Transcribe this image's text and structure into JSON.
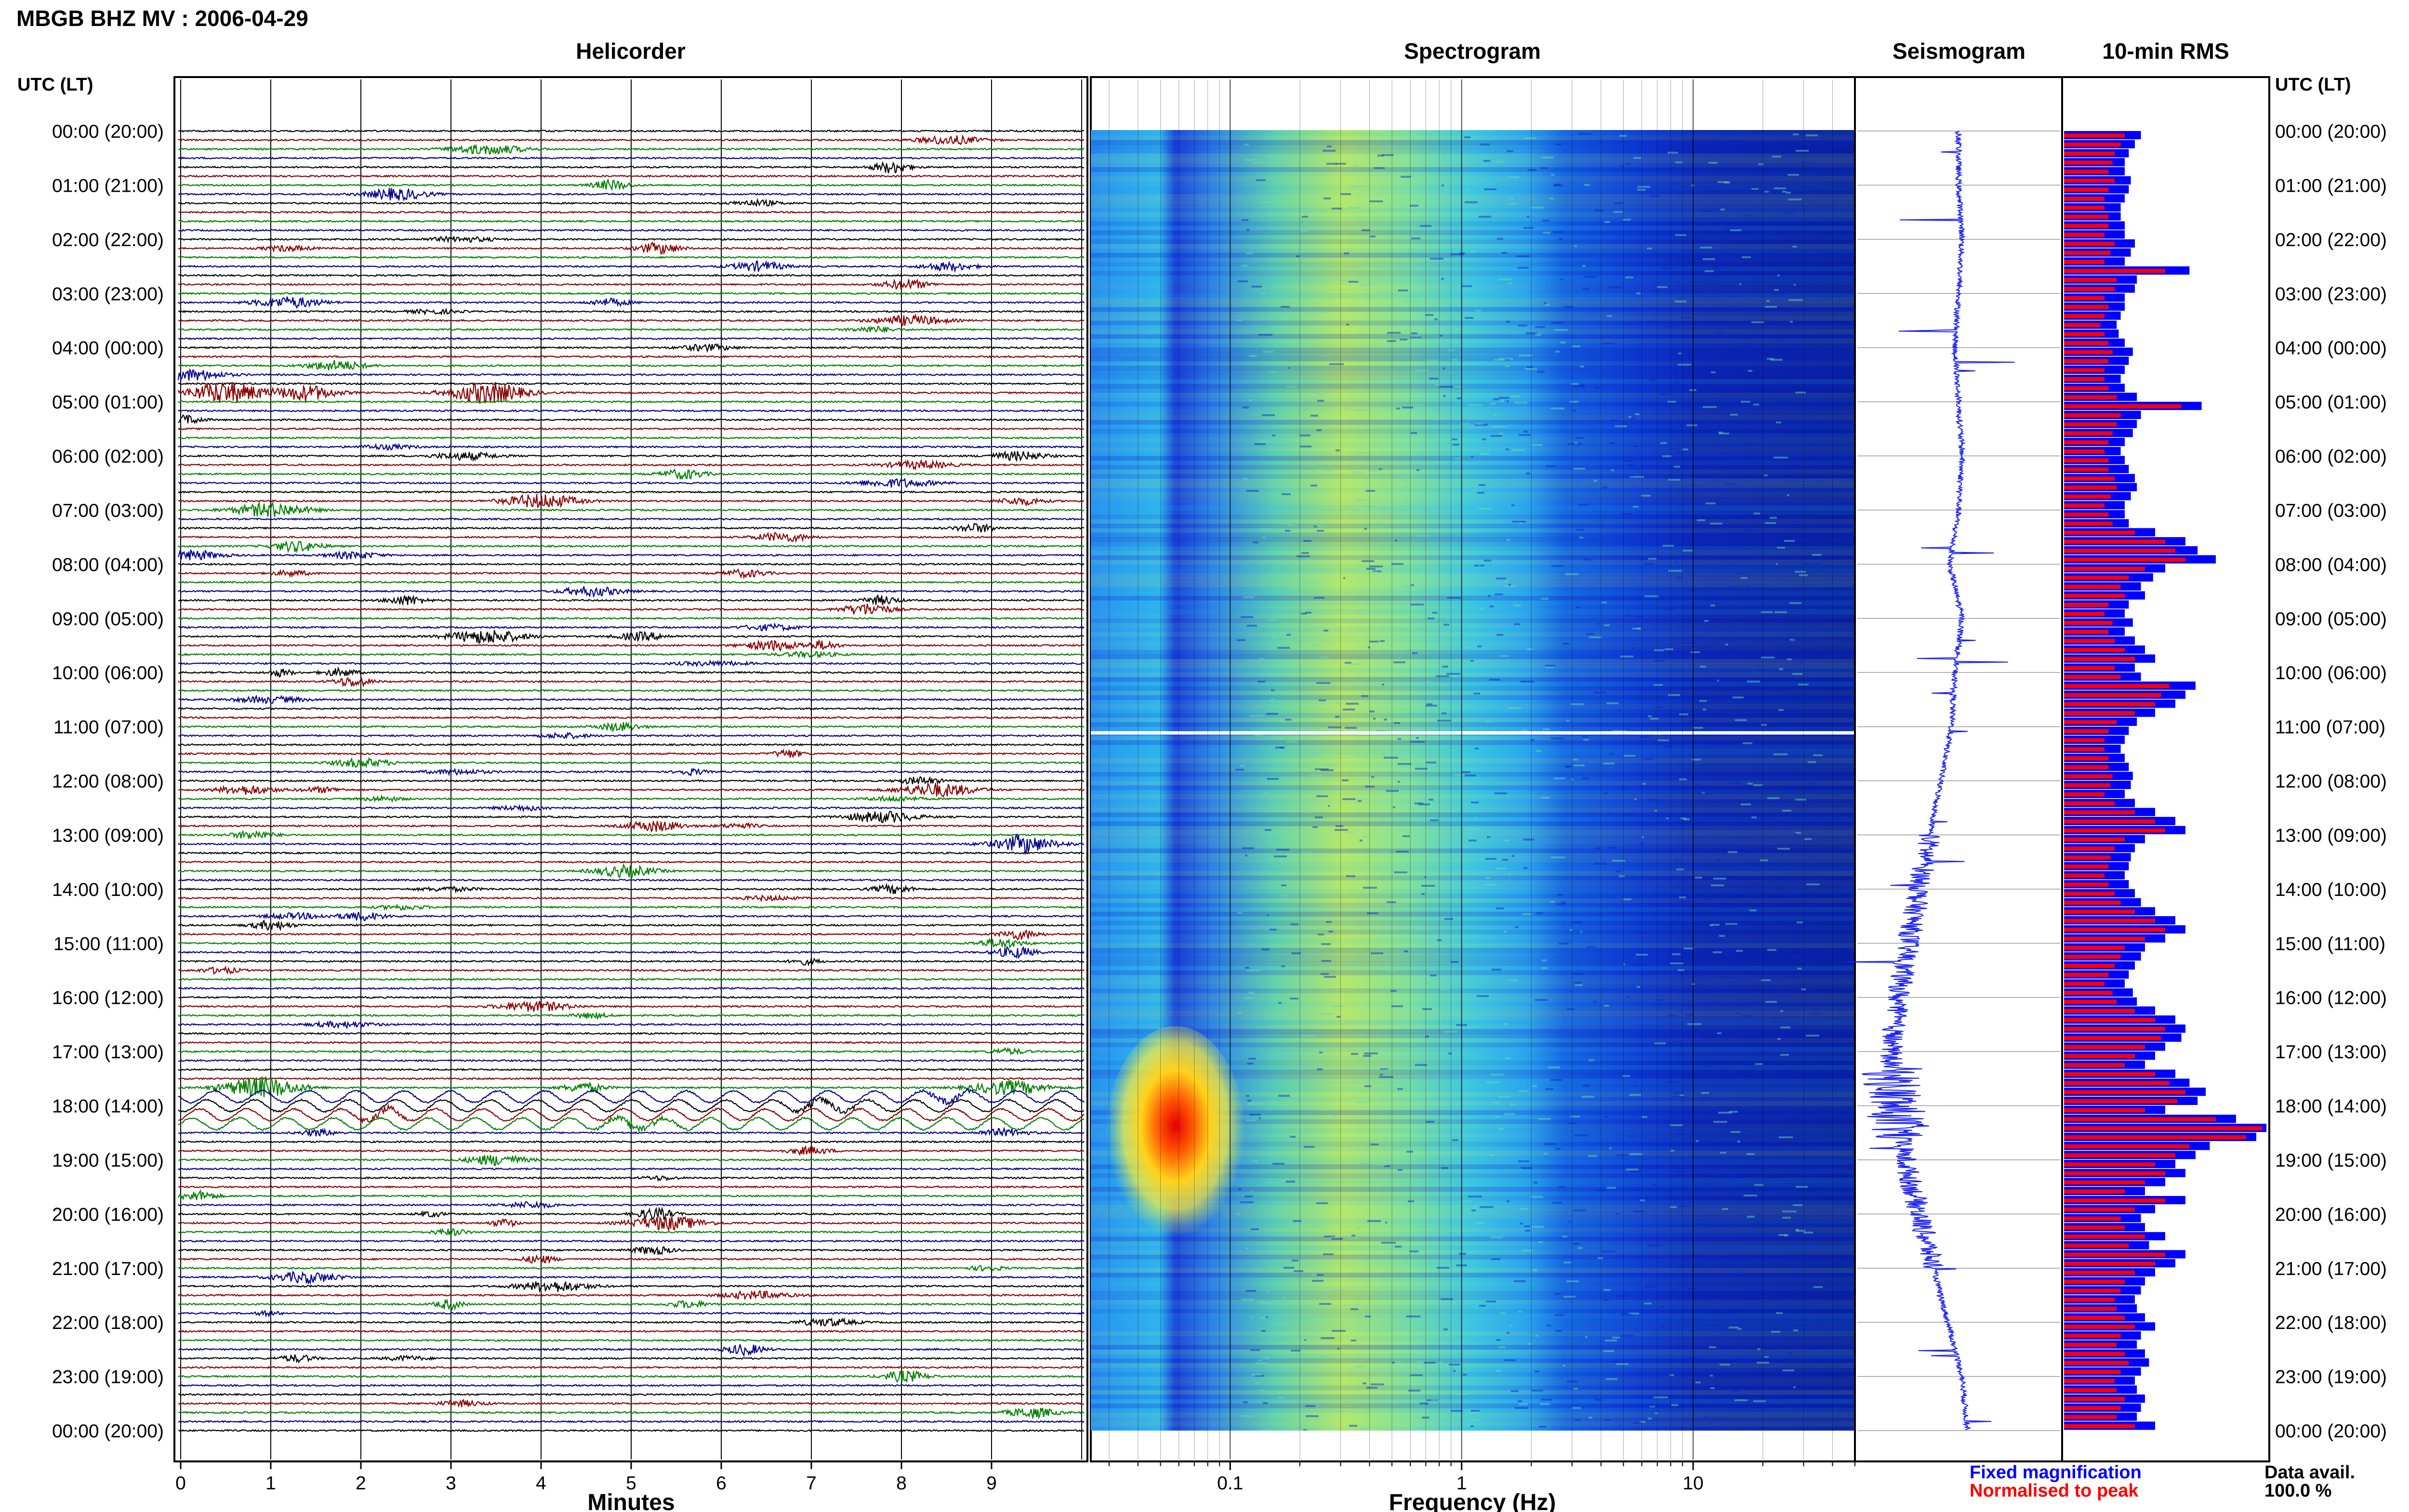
{
  "title": "MBGB BHZ MV : 2006-04-29",
  "panels": {
    "helicorder": "Helicorder",
    "spectrogram": "Spectrogram",
    "seismogram": "Seismogram",
    "rms": "10-min RMS"
  },
  "time_axis_label": "UTC (LT)",
  "time_ticks": [
    "00:00 (20:00)",
    "01:00 (21:00)",
    "02:00 (22:00)",
    "03:00 (23:00)",
    "04:00 (00:00)",
    "05:00 (01:00)",
    "06:00 (02:00)",
    "07:00 (03:00)",
    "08:00 (04:00)",
    "09:00 (05:00)",
    "10:00 (06:00)",
    "11:00 (07:00)",
    "12:00 (08:00)",
    "13:00 (09:00)",
    "14:00 (10:00)",
    "15:00 (11:00)",
    "16:00 (12:00)",
    "17:00 (13:00)",
    "18:00 (14:00)",
    "19:00 (15:00)",
    "20:00 (16:00)",
    "21:00 (17:00)",
    "22:00 (18:00)",
    "23:00 (19:00)",
    "00:00 (20:00)"
  ],
  "legend": {
    "fixed": "Fixed magnification",
    "normalised": "Normalised to peak",
    "fixed_color": "#0000ff",
    "normalised_color": "#ff0000"
  },
  "data_avail": {
    "label": "Data avail.",
    "value": "100.0 %"
  },
  "colors": {
    "black": "#000000",
    "red": "#8b0000",
    "green": "#008000",
    "blue": "#00008b"
  },
  "chart_data": [
    {
      "type": "line",
      "panel": "Helicorder",
      "xlabel": "Minutes",
      "x_ticks": [
        "0",
        "1",
        "2",
        "3",
        "4",
        "5",
        "6",
        "7",
        "8",
        "9"
      ],
      "xlim": [
        0,
        10
      ],
      "rows": 144,
      "row_minutes": 10,
      "line_colors_cycle": [
        "black",
        "red",
        "green",
        "blue"
      ],
      "notable_events": [
        {
          "time": "04:50",
          "minute": 0.5,
          "amp": "large"
        },
        {
          "time": "04:50",
          "minute": 3.4,
          "amp": "large"
        },
        {
          "time": "06:50",
          "minute": 4.0,
          "amp": "medium"
        },
        {
          "time": "07:00",
          "minute": 1.0,
          "amp": "medium"
        },
        {
          "time": "09:20",
          "minute": 3.4,
          "amp": "medium"
        },
        {
          "time": "12:10",
          "minute": 8.4,
          "amp": "medium"
        },
        {
          "time": "17:40",
          "minute": 0.9,
          "amp": "large"
        },
        {
          "time": "17:40",
          "minute": 9.2,
          "amp": "medium"
        },
        {
          "time": "20:10",
          "minute": 5.4,
          "amp": "medium"
        },
        {
          "time": "18:00",
          "minute": 0,
          "amp": "long-period oscillation"
        }
      ]
    },
    {
      "type": "heatmap",
      "panel": "Spectrogram",
      "xlabel": "Frequency (Hz)",
      "x_scale": "log",
      "xlim": [
        0.025,
        50
      ],
      "x_ticks": [
        "0.1",
        "1",
        "10"
      ],
      "features": [
        {
          "time": "11:00",
          "note": "data gap (white line)"
        },
        {
          "time": "17:50-20:10",
          "freq_hz": [
            0.04,
            0.12
          ],
          "note": "high energy (red/yellow)"
        }
      ]
    },
    {
      "type": "line",
      "panel": "Seismogram",
      "note": "24-hour trace, drifts left toward 17:00-18:00 then returns",
      "relative_offset": [
        0.5,
        0.5,
        0.52,
        0.5,
        0.48,
        0.5,
        0.52,
        0.5,
        0.45,
        0.52,
        0.48,
        0.46,
        0.4,
        0.34,
        0.28,
        0.22,
        0.16,
        0.12,
        0.14,
        0.2,
        0.28,
        0.36,
        0.44,
        0.52,
        0.55
      ]
    },
    {
      "type": "bar",
      "panel": "10-min RMS",
      "orientation": "horizontal",
      "series": [
        {
          "name": "Fixed magnification",
          "values": [
            0.38,
            0.35,
            0.32,
            0.3,
            0.3,
            0.33,
            0.32,
            0.3,
            0.28,
            0.28,
            0.3,
            0.3,
            0.35,
            0.33,
            0.3,
            0.62,
            0.36,
            0.35,
            0.3,
            0.3,
            0.28,
            0.26,
            0.27,
            0.3,
            0.34,
            0.32,
            0.3,
            0.28,
            0.3,
            0.36,
            0.68,
            0.38,
            0.36,
            0.34,
            0.3,
            0.28,
            0.3,
            0.32,
            0.35,
            0.36,
            0.33,
            0.3,
            0.3,
            0.32,
            0.45,
            0.6,
            0.66,
            0.75,
            0.5,
            0.44,
            0.38,
            0.4,
            0.32,
            0.3,
            0.34,
            0.3,
            0.35,
            0.4,
            0.45,
            0.35,
            0.38,
            0.65,
            0.6,
            0.55,
            0.45,
            0.36,
            0.32,
            0.3,
            0.28,
            0.3,
            0.32,
            0.34,
            0.33,
            0.3,
            0.35,
            0.45,
            0.55,
            0.6,
            0.4,
            0.35,
            0.33,
            0.32,
            0.3,
            0.32,
            0.35,
            0.38,
            0.45,
            0.55,
            0.6,
            0.5,
            0.4,
            0.38,
            0.35,
            0.32,
            0.3,
            0.34,
            0.36,
            0.45,
            0.55,
            0.6,
            0.58,
            0.5,
            0.45,
            0.4,
            0.55,
            0.62,
            0.7,
            0.66,
            0.5,
            0.85,
            1.0,
            0.95,
            0.72,
            0.65,
            0.55,
            0.6,
            0.5,
            0.4,
            0.6,
            0.45,
            0.38,
            0.4,
            0.5,
            0.42,
            0.6,
            0.55,
            0.45,
            0.4,
            0.38,
            0.35,
            0.36,
            0.4,
            0.45,
            0.38,
            0.36,
            0.4,
            0.42,
            0.38,
            0.35,
            0.36,
            0.4,
            0.38,
            0.36,
            0.45
          ]
        },
        {
          "name": "Normalised to peak",
          "values": [
            0.3,
            0.28,
            0.25,
            0.24,
            0.22,
            0.25,
            0.22,
            0.2,
            0.2,
            0.22,
            0.22,
            0.2,
            0.25,
            0.23,
            0.2,
            0.5,
            0.26,
            0.25,
            0.2,
            0.22,
            0.2,
            0.18,
            0.2,
            0.22,
            0.24,
            0.22,
            0.2,
            0.2,
            0.22,
            0.26,
            0.58,
            0.28,
            0.26,
            0.24,
            0.22,
            0.2,
            0.22,
            0.22,
            0.25,
            0.26,
            0.23,
            0.2,
            0.22,
            0.24,
            0.35,
            0.5,
            0.55,
            0.6,
            0.4,
            0.32,
            0.28,
            0.3,
            0.22,
            0.2,
            0.24,
            0.22,
            0.25,
            0.3,
            0.35,
            0.25,
            0.28,
            0.52,
            0.48,
            0.45,
            0.35,
            0.26,
            0.22,
            0.2,
            0.2,
            0.22,
            0.22,
            0.24,
            0.23,
            0.2,
            0.25,
            0.35,
            0.45,
            0.5,
            0.3,
            0.25,
            0.23,
            0.22,
            0.2,
            0.22,
            0.25,
            0.28,
            0.35,
            0.45,
            0.5,
            0.4,
            0.3,
            0.28,
            0.25,
            0.22,
            0.2,
            0.24,
            0.26,
            0.35,
            0.45,
            0.5,
            0.48,
            0.4,
            0.35,
            0.3,
            0.45,
            0.52,
            0.6,
            0.56,
            0.4,
            0.75,
            0.98,
            0.9,
            0.62,
            0.55,
            0.45,
            0.5,
            0.4,
            0.3,
            0.5,
            0.35,
            0.28,
            0.3,
            0.4,
            0.32,
            0.5,
            0.45,
            0.35,
            0.3,
            0.28,
            0.25,
            0.26,
            0.3,
            0.35,
            0.28,
            0.26,
            0.3,
            0.32,
            0.28,
            0.25,
            0.26,
            0.3,
            0.28,
            0.26,
            0.35
          ]
        }
      ]
    }
  ]
}
